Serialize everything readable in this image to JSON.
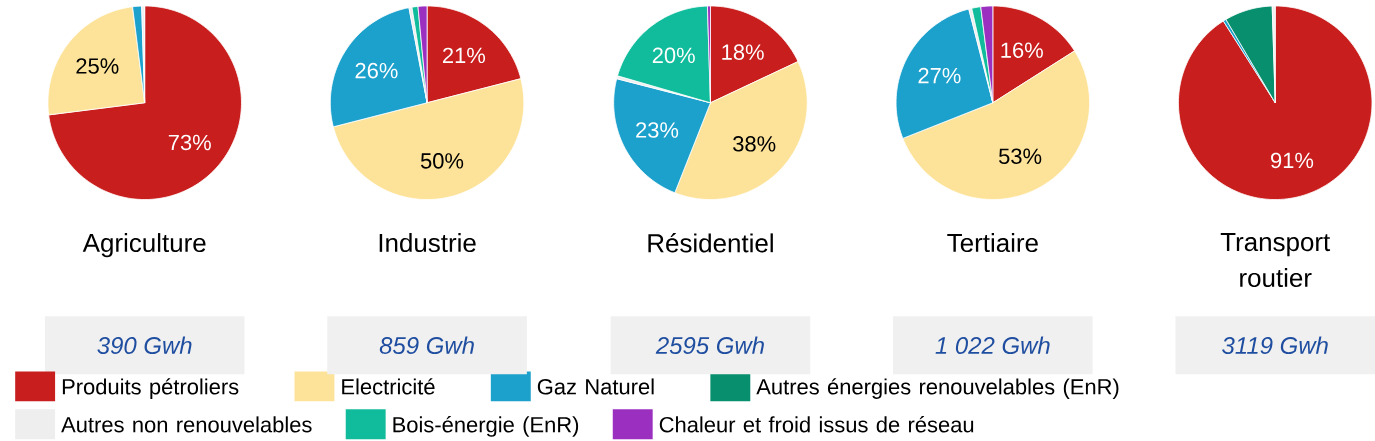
{
  "chart_data": [
    {
      "type": "pie",
      "title": "Agriculture",
      "subtitle": "390 Gwh",
      "legend": "bottom",
      "categories": [
        "Produits pétroliers",
        "Electricité",
        "Gaz Naturel",
        "Autres énergies renouvelables (EnR)",
        "Autres non renouvelables",
        "Bois-énergie (EnR)",
        "Chaleur et froid issus de réseau"
      ],
      "colors": [
        "#c81e1e",
        "#fde39a",
        "#1ca0cc",
        "#078f6e",
        "#eeeeee",
        "#10bc9b",
        "#9b30c0"
      ],
      "values": [
        73,
        25,
        1.5,
        0,
        0.5,
        0,
        0
      ],
      "value_labels": [
        "73%",
        "25%",
        null,
        null,
        null,
        null,
        null
      ]
    },
    {
      "type": "pie",
      "title": "Industrie",
      "subtitle": "859 Gwh",
      "categories": [
        null,
        null,
        null,
        null,
        null,
        null,
        null
      ],
      "colors": [
        "#c81e1e",
        "#fde39a",
        "#1ca0cc",
        "#078f6e",
        "#eeeeee",
        "#10bc9b",
        "#9b30c0"
      ],
      "values": [
        21,
        50,
        26,
        0,
        0.5,
        1,
        1.5
      ],
      "value_labels": [
        "21%",
        "50%",
        "26%",
        null,
        null,
        null,
        null
      ]
    },
    {
      "type": "pie",
      "title": "Résidentiel",
      "subtitle": "2595 Gwh",
      "categories": [
        null,
        null,
        null,
        null,
        null,
        null,
        null
      ],
      "colors": [
        "#c81e1e",
        "#fde39a",
        "#1ca0cc",
        "#078f6e",
        "#eeeeee",
        "#10bc9b",
        "#9b30c0"
      ],
      "values": [
        18,
        38,
        23,
        0,
        0.5,
        20,
        0.5
      ],
      "value_labels": [
        "18%",
        "38%",
        "23%",
        null,
        null,
        "20%",
        null
      ]
    },
    {
      "type": "pie",
      "title": "Tertiaire",
      "subtitle": "1 022 Gwh",
      "categories": [
        null,
        null,
        null,
        null,
        null,
        null,
        null
      ],
      "colors": [
        "#c81e1e",
        "#fde39a",
        "#1ca0cc",
        "#078f6e",
        "#eeeeee",
        "#10bc9b",
        "#9b30c0"
      ],
      "values": [
        16,
        53,
        27,
        0,
        0.5,
        1.5,
        2
      ],
      "value_labels": [
        "16%",
        "53%",
        "27%",
        null,
        null,
        null,
        null
      ]
    },
    {
      "type": "pie",
      "title": "Transport routier",
      "subtitle": "3119  Gwh",
      "categories": [
        null,
        null,
        null,
        null,
        null,
        null,
        null
      ],
      "colors": [
        "#c81e1e",
        "#fde39a",
        "#1ca0cc",
        "#078f6e",
        "#eeeeee",
        "#10bc9b",
        "#9b30c0"
      ],
      "values": [
        91,
        0,
        0.5,
        8,
        0.5,
        0,
        0
      ],
      "value_labels": [
        "91%",
        null,
        null,
        null,
        null,
        null,
        null
      ]
    }
  ]
}
